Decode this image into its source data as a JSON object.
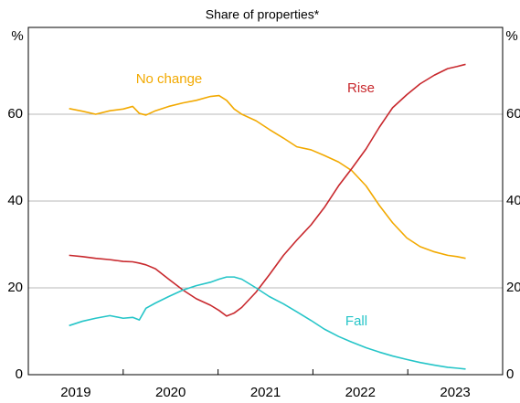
{
  "chart_data": {
    "type": "line",
    "subtitle": "Share of properties*",
    "y_unit": "%",
    "x": [
      2019.43,
      2019.57,
      2019.71,
      2019.86,
      2020.0,
      2020.1,
      2020.17,
      2020.24,
      2020.34,
      2020.48,
      2020.63,
      2020.77,
      2020.92,
      2021.01,
      2021.09,
      2021.17,
      2021.25,
      2021.4,
      2021.54,
      2021.69,
      2021.83,
      2021.98,
      2022.12,
      2022.27,
      2022.41,
      2022.56,
      2022.7,
      2022.84,
      2022.99,
      2023.13,
      2023.28,
      2023.42,
      2023.52,
      2023.61
    ],
    "series": [
      {
        "name": "No change",
        "color": "#f2a900",
        "values": [
          61.3,
          60.7,
          60,
          60.8,
          61.2,
          61.8,
          60.2,
          59.8,
          60.8,
          61.8,
          62.6,
          63.2,
          64.1,
          64.3,
          63.2,
          61.2,
          60,
          58.5,
          56.5,
          54.5,
          52.5,
          51.8,
          50.5,
          49,
          47,
          43.5,
          39,
          35,
          31.5,
          29.5,
          28.3,
          27.5,
          27.2,
          26.8
        ]
      },
      {
        "name": "Rise",
        "color": "#c8282d",
        "values": [
          27.5,
          27.2,
          26.8,
          26.5,
          26.1,
          26,
          25.7,
          25.3,
          24.4,
          22,
          19.5,
          17.5,
          16,
          14.8,
          13.5,
          14.2,
          15.5,
          19,
          23,
          27.5,
          31,
          34.5,
          38.5,
          43.5,
          47.5,
          52,
          57,
          61.5,
          64.5,
          67,
          69,
          70.5,
          71,
          71.5
        ]
      },
      {
        "name": "Fall",
        "color": "#25c5c8",
        "values": [
          11.3,
          12.3,
          13,
          13.6,
          13,
          13.2,
          12.6,
          15.3,
          16.5,
          18,
          19.5,
          20.5,
          21.3,
          22,
          22.5,
          22.5,
          22,
          20,
          18,
          16.3,
          14.5,
          12.5,
          10.5,
          8.8,
          7.5,
          6.2,
          5.2,
          4.3,
          3.5,
          2.8,
          2.2,
          1.7,
          1.5,
          1.3
        ]
      }
    ],
    "xlim": [
      2019,
      2024
    ],
    "xticks": [
      2019,
      2020,
      2021,
      2022,
      2023,
      2024
    ],
    "xtick_labels": [
      {
        "value": 2019.5,
        "label": "2019"
      },
      {
        "value": 2020.5,
        "label": "2020"
      },
      {
        "value": 2021.5,
        "label": "2021"
      },
      {
        "value": 2022.5,
        "label": "2022"
      },
      {
        "value": 2023.5,
        "label": "2023"
      }
    ],
    "ylim": [
      0,
      80
    ],
    "yticks": [
      0,
      20,
      40,
      60
    ],
    "grid": true
  }
}
